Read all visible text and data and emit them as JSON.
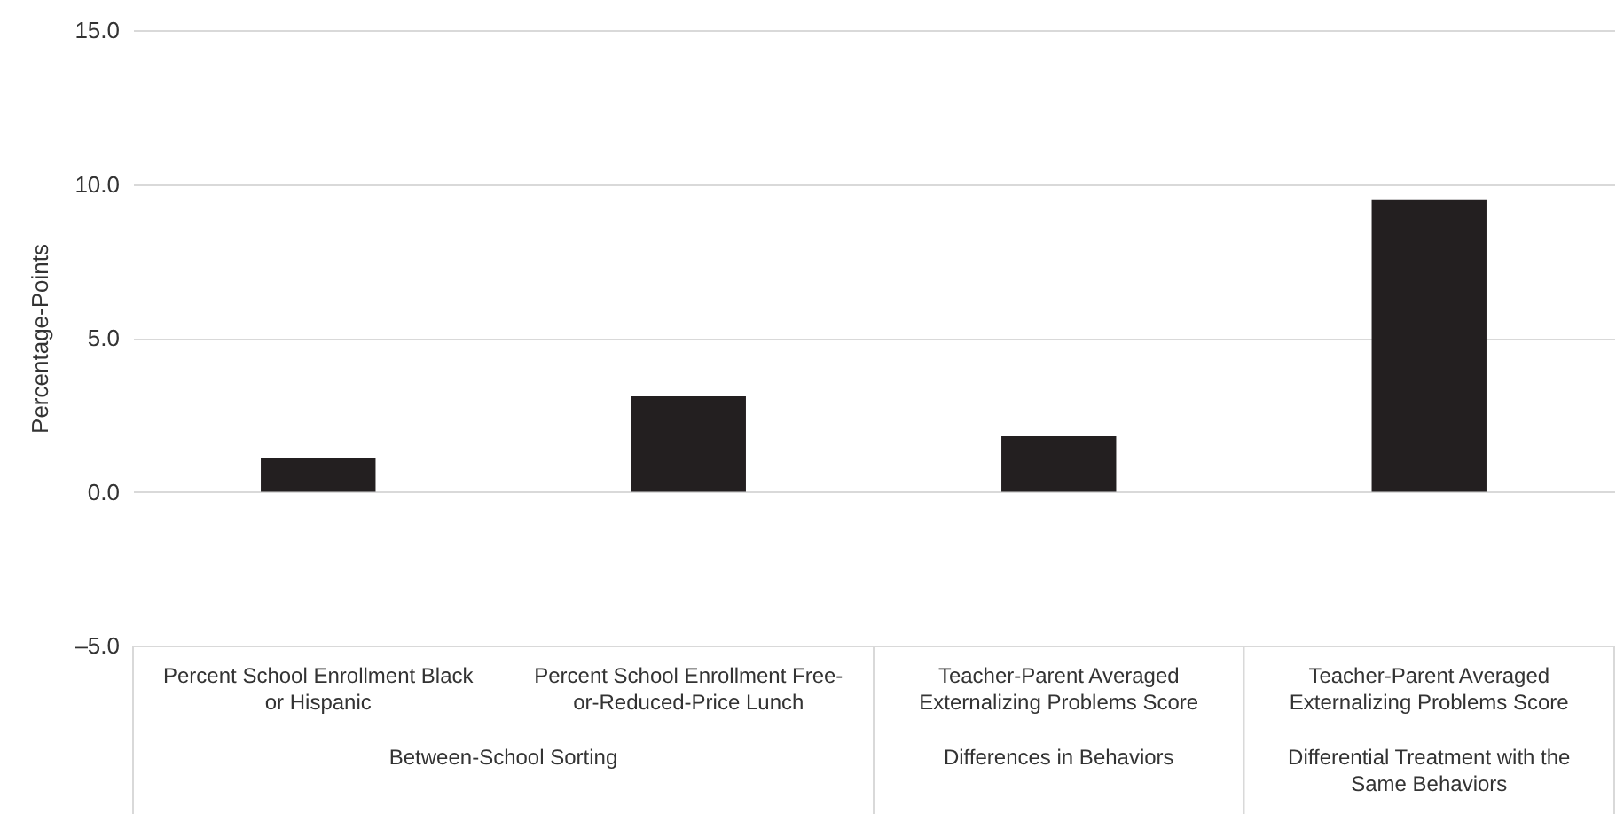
{
  "chart_data": {
    "type": "bar",
    "ylabel": "Percentage-Points",
    "categories": [
      "Percent School Enrollment Black or Hispanic",
      "Percent School Enrollment Free-or-Reduced-Price Lunch",
      "Teacher-Parent Averaged Externalizing Problems Score",
      "Teacher-Parent Averaged Externalizing Problems Score"
    ],
    "values": [
      1.1,
      3.1,
      1.8,
      9.5
    ],
    "color": "#231f20",
    "ylim": [
      -5,
      15
    ],
    "yticks": [
      {
        "value": -5,
        "label": "–5.0"
      },
      {
        "value": 0,
        "label": "0.0"
      },
      {
        "value": 5,
        "label": "5.0"
      },
      {
        "value": 10,
        "label": "10.0"
      },
      {
        "value": 15,
        "label": "15.0"
      }
    ],
    "grid": true,
    "annotations": [
      "Between-School Sorting",
      "Differences in Behaviors",
      "Differential Treatment with the Same Behaviors"
    ]
  }
}
